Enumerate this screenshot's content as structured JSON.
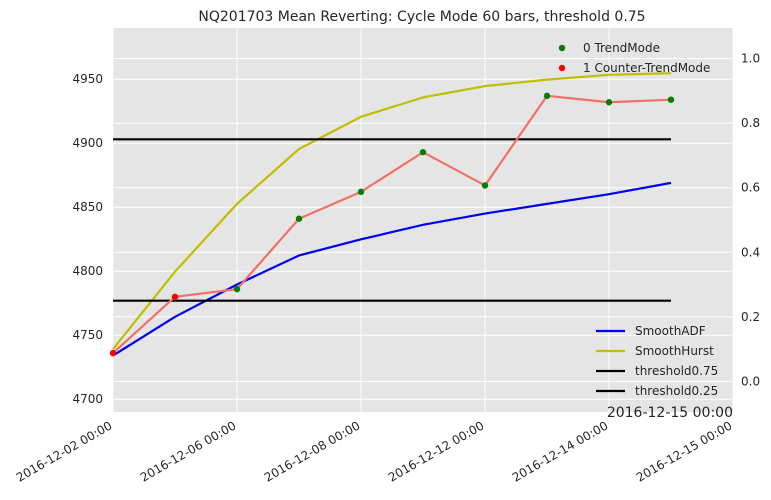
{
  "chart_data": {
    "type": "line",
    "title": "NQ201703 Mean Reverting: Cycle Mode 60 bars, threshold 0.75",
    "xlabel": "",
    "ylabel": "",
    "x_tick_labels": [
      "2016-12-02 00:00",
      "2016-12-06 00:00",
      "2016-12-08 00:00",
      "2016-12-12 00:00",
      "2016-12-14 00:00",
      "2016-12-15 00:00"
    ],
    "x_corner_label": "2016-12-15 00:00",
    "ylim_left": [
      4690,
      4990
    ],
    "y_ticks_left": [
      4700,
      4750,
      4800,
      4850,
      4900,
      4950
    ],
    "ylim_right": [
      -0.095,
      1.095
    ],
    "y_ticks_right": [
      "0.0",
      "0.2",
      "0.4",
      "0.6",
      "0.8",
      "1.0"
    ],
    "grid": true,
    "price_series": {
      "color": "#f07167",
      "values": [
        4736,
        4780,
        4786,
        4841,
        4862,
        4893,
        4867,
        4937,
        4932,
        4934
      ]
    },
    "markers": {
      "trend_color": "#007f00",
      "counter_color": "#ff0000",
      "modes": [
        1,
        1,
        0,
        0,
        0,
        0,
        0,
        0,
        0,
        0
      ]
    },
    "series": [
      {
        "name": "SmoothADF",
        "axis": "right",
        "color": "#0000ee",
        "values": [
          0.08,
          0.2,
          0.3,
          0.39,
          0.44,
          0.485,
          0.52,
          0.55,
          0.58,
          0.615
        ]
      },
      {
        "name": "SmoothHurst",
        "axis": "right",
        "color": "#bfbf00",
        "values": [
          0.1,
          0.34,
          0.55,
          0.72,
          0.82,
          0.88,
          0.915,
          0.935,
          0.95,
          0.955
        ]
      },
      {
        "name": "threshold0.75",
        "axis": "right",
        "color": "#000000",
        "values": [
          0.75,
          0.75,
          0.75,
          0.75,
          0.75,
          0.75,
          0.75,
          0.75,
          0.75,
          0.75
        ]
      },
      {
        "name": "threshold0.25",
        "axis": "right",
        "color": "#000000",
        "values": [
          0.25,
          0.25,
          0.25,
          0.25,
          0.25,
          0.25,
          0.25,
          0.25,
          0.25,
          0.25
        ]
      }
    ],
    "legend_top": [
      {
        "label": "0 TrendMode",
        "color": "#007f00"
      },
      {
        "label": "1 Counter-TrendMode",
        "color": "#ff0000"
      }
    ],
    "legend_top_position": "top-right",
    "legend_bottom_position": "lower-right"
  }
}
